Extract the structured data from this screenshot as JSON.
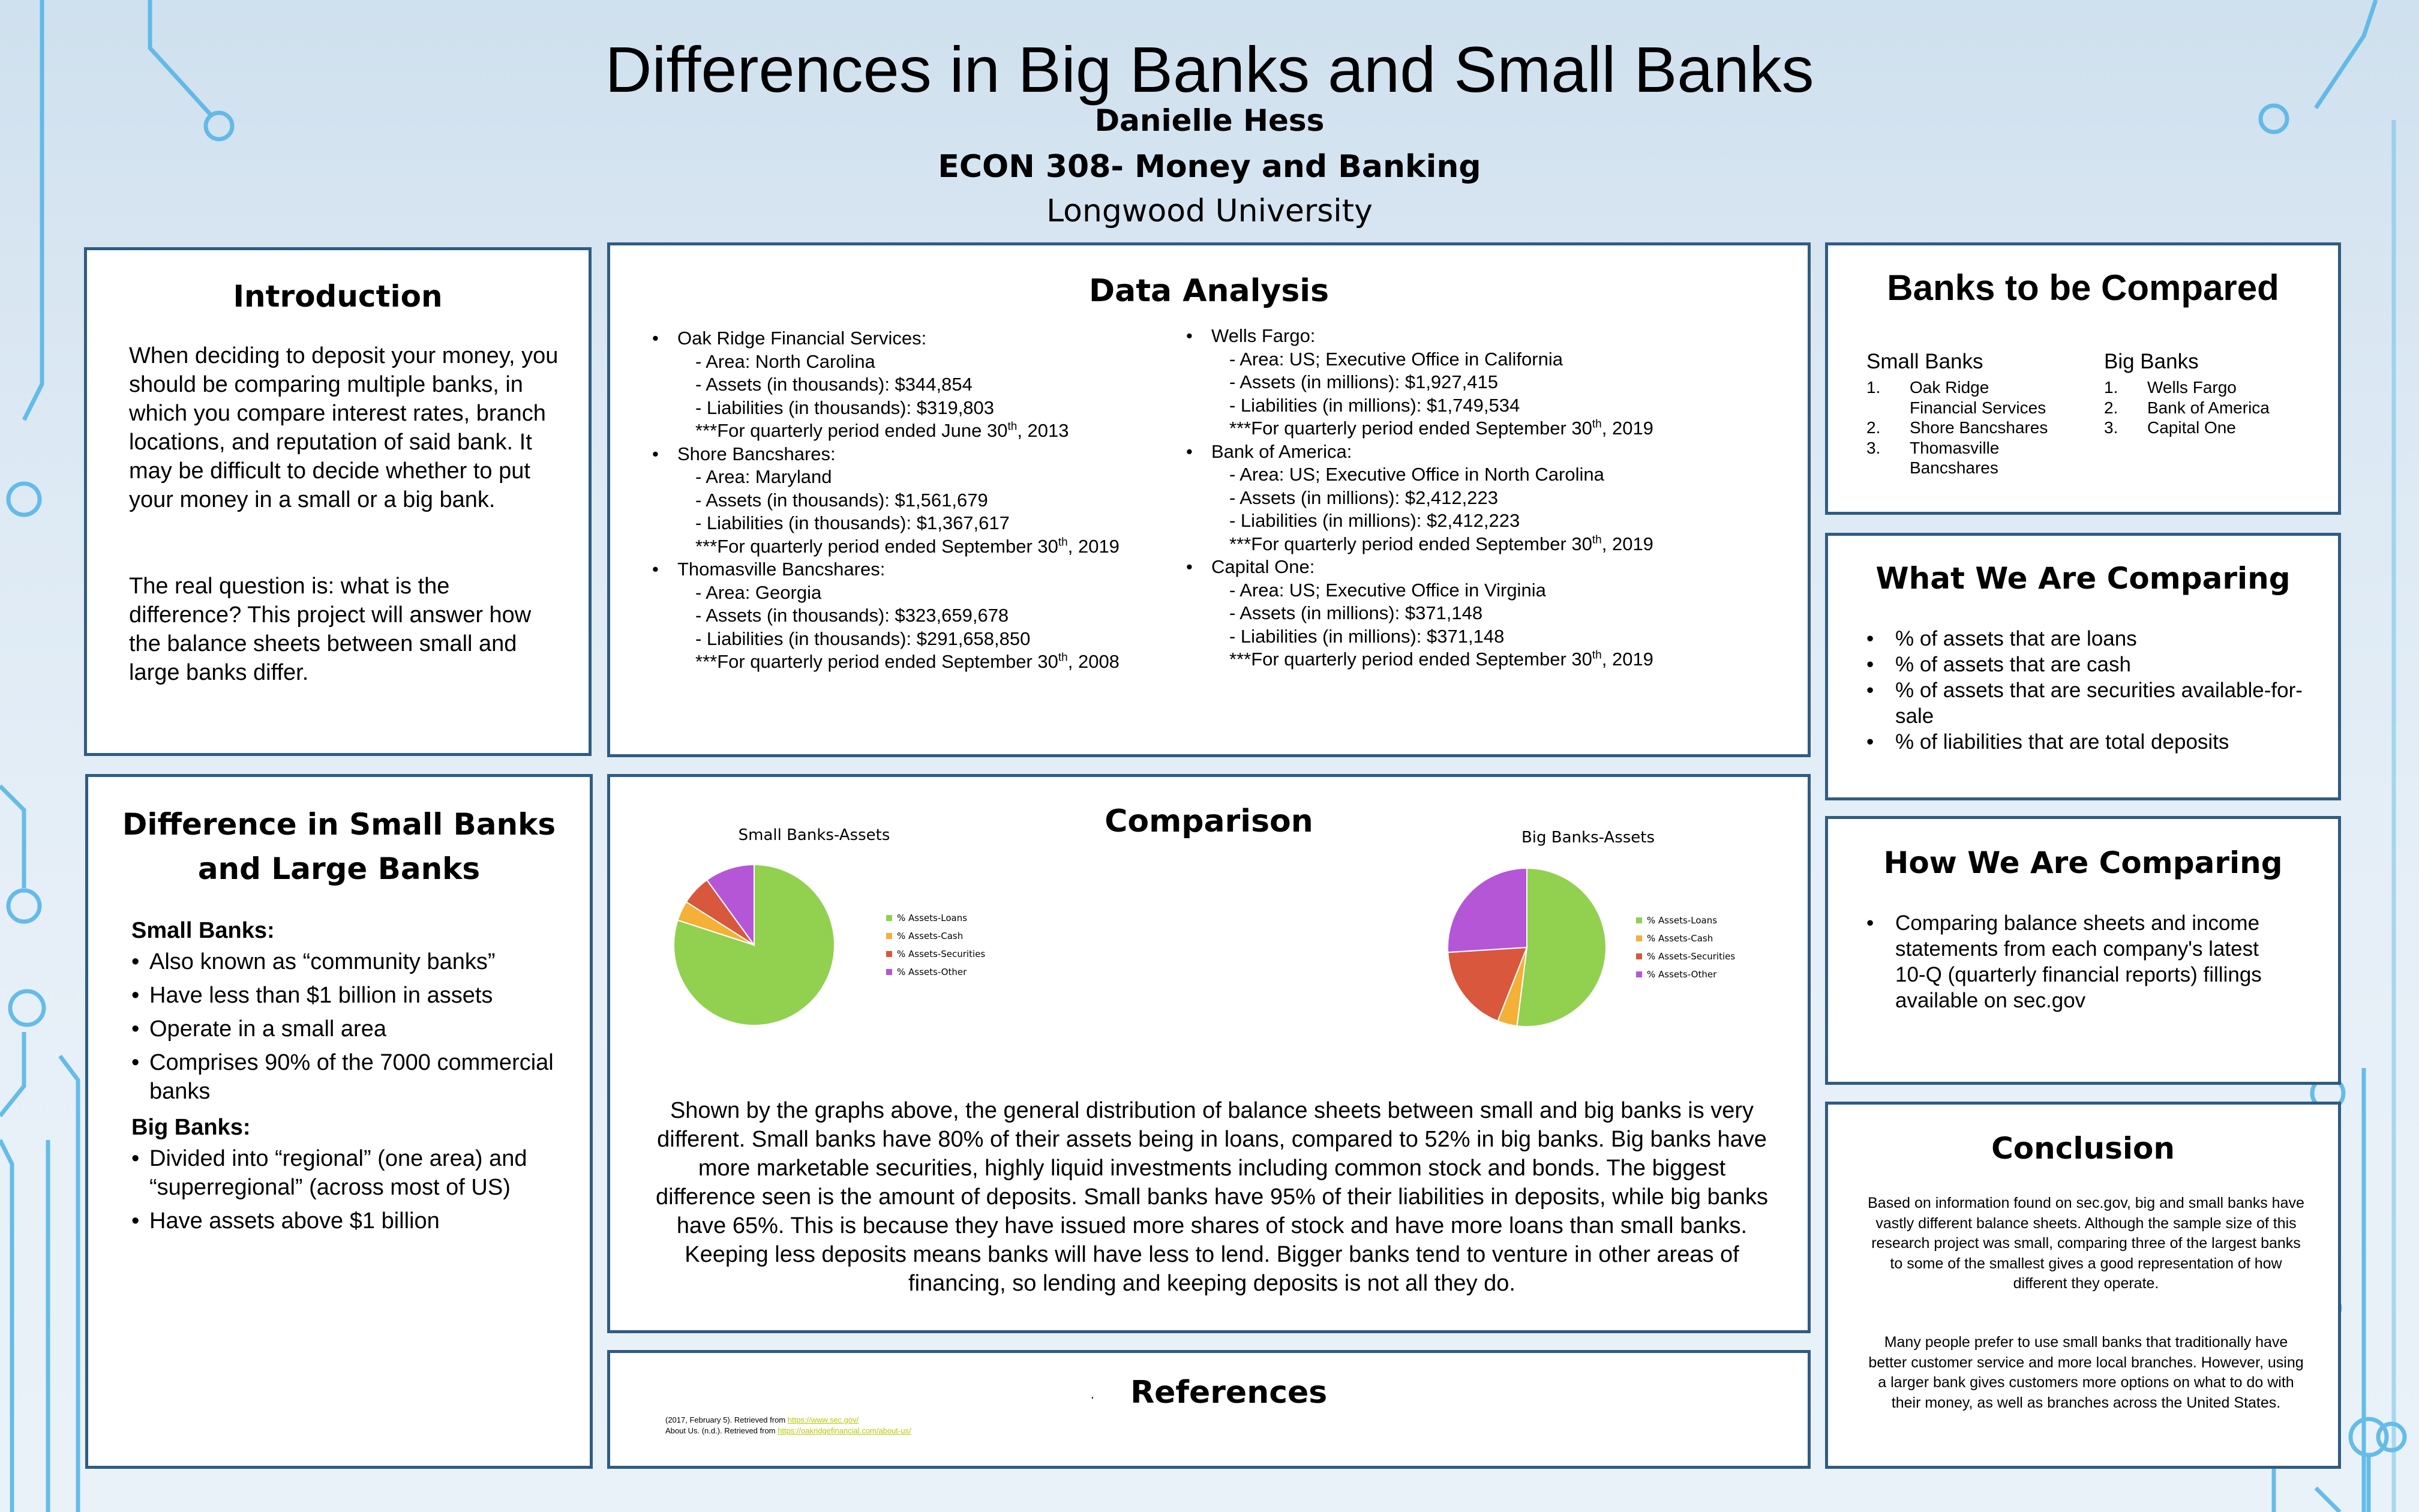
{
  "header": {
    "title": "Differences in Big Banks and Small Banks",
    "author": "Danielle Hess",
    "course": "ECON 308- Money and Banking",
    "university": "Longwood University"
  },
  "introduction": {
    "heading": "Introduction",
    "p1": "When deciding to deposit your money, you should be comparing multiple banks, in which you compare interest rates, branch locations, and reputation of said bank.  It may be difficult to decide whether to put your money in a small or a big bank.",
    "p2": "The real question is: what is the difference?  This project will answer how the balance sheets between small and large banks differ."
  },
  "data_analysis": {
    "heading": "Data Analysis",
    "small": [
      {
        "name": "Oak Ridge Financial Services:",
        "area": "- Area: North Carolina",
        "assets": "- Assets (in thousands): $344,854",
        "liabilities": "- Liabilities (in thousands): $319,803",
        "period_a": "***For quarterly period ended June 30",
        "sup": "th",
        "period_b": ", 2013"
      },
      {
        "name": "Shore Bancshares:",
        "area": "- Area: Maryland",
        "assets": "- Assets (in thousands): $1,561,679",
        "liabilities": "- Liabilities (in thousands): $1,367,617",
        "period_a": "***For quarterly period ended September 30",
        "sup": "th",
        "period_b": ", 2019"
      },
      {
        "name": "Thomasville Bancshares:",
        "area": "- Area: Georgia",
        "assets": "- Assets (in thousands): $323,659,678",
        "liabilities": "- Liabilities (in thousands): $291,658,850",
        "period_a": "***For quarterly period ended September 30",
        "sup": "th",
        "period_b": ", 2008"
      }
    ],
    "big": [
      {
        "name": "Wells Fargo:",
        "area": "- Area: US; Executive Office in California",
        "assets": "- Assets (in millions): $1,927,415",
        "liabilities": "- Liabilities (in millions): $1,749,534",
        "period_a": "***For quarterly period ended September 30",
        "sup": "th",
        "period_b": ", 2019"
      },
      {
        "name": "Bank of America:",
        "area": "- Area: US; Executive Office in North Carolina",
        "assets": "- Assets (in millions): $2,412,223",
        "liabilities": "- Liabilities (in millions): $2,412,223",
        "period_a": "***For quarterly period ended September 30",
        "sup": "th",
        "period_b": ", 2019"
      },
      {
        "name": "Capital One:",
        "area": "- Area: US; Executive Office in Virginia",
        "assets": "- Assets (in millions): $371,148",
        "liabilities": "- Liabilities (in millions): $371,148",
        "period_a": "***For quarterly period ended September 30",
        "sup": "th",
        "period_b": ", 2019"
      }
    ]
  },
  "banks_compared": {
    "heading": "Banks to be Compared",
    "small_caption": "Small Banks",
    "small_items": [
      {
        "num": "1.",
        "lines": [
          "Oak Ridge",
          "Financial Services"
        ]
      },
      {
        "num": "2.",
        "lines": [
          "Shore Bancshares"
        ]
      },
      {
        "num": "3.",
        "lines": [
          "Thomasville",
          "Bancshares"
        ]
      }
    ],
    "big_caption": "Big Banks",
    "big_items": [
      {
        "num": "1.",
        "lines": [
          "Wells Fargo"
        ]
      },
      {
        "num": "2.",
        "lines": [
          "Bank of America"
        ]
      },
      {
        "num": "3.",
        "lines": [
          "Capital One"
        ]
      }
    ]
  },
  "what_comparing": {
    "heading": "What We Are Comparing",
    "items": [
      "% of assets that are loans",
      "% of assets that are cash",
      "% of assets that are securities available-for-sale",
      "% of liabilities that are total deposits"
    ]
  },
  "how_comparing": {
    "heading": "How We Are Comparing",
    "items": [
      "Comparing balance sheets and income statements from each company's latest 10-Q (quarterly financial reports) fillings available on sec.gov"
    ]
  },
  "difference": {
    "heading": "Difference in Small Banks and Large Banks",
    "small_caption": "Small Banks:",
    "small_items": [
      "Also known as “community banks”",
      "Have less than $1 billion in assets",
      "Operate in a small area",
      "Comprises 90% of the 7000 commercial banks"
    ],
    "big_caption": "Big Banks:",
    "big_items": [
      "Divided into “regional” (one area) and “superregional” (across most of US)",
      "Have assets above $1 billion"
    ]
  },
  "comparison": {
    "heading": "Comparison",
    "text": "Shown by the graphs above, the general distribution of balance sheets between small and big banks is very different.  Small banks have 80% of their assets being in loans, compared to 52% in big banks.  Big banks have more marketable securities, highly liquid investments including common stock and bonds.  The biggest difference seen is the amount of deposits.  Small banks have 95% of their liabilities in deposits, while big banks have 65%.  This is because they have issued more shares of stock and have more loans than small banks.  Keeping less deposits means banks will have less to lend.  Bigger banks tend to venture in other areas of financing, so lending and keeping deposits is not all they do."
  },
  "chart_data": [
    {
      "type": "pie",
      "title": "Small Banks-Assets",
      "categories": [
        "% Assets-Loans",
        "% Assets-Cash",
        "% Assets-Securities",
        "% Assets-Other"
      ],
      "values": [
        80,
        4,
        6,
        10
      ],
      "colors": [
        "#92d050",
        "#f4b037",
        "#d9573c",
        "#b556d6"
      ],
      "legend": "right"
    },
    {
      "type": "pie",
      "title": "Big Banks-Assets",
      "categories": [
        "% Assets-Loans",
        "% Assets-Cash",
        "% Assets-Securities",
        "% Assets-Other"
      ],
      "values": [
        52,
        4,
        18,
        26
      ],
      "colors": [
        "#92d050",
        "#f4b037",
        "#d9573c",
        "#b556d6"
      ],
      "legend": "right"
    }
  ],
  "references": {
    "heading": "References",
    "marker": ".",
    "ref1_text": "(2017, February 5). Retrieved from ",
    "ref1_link": "https://www.sec.gov/",
    "ref2_text": "About Us. (n.d.). Retrieved from ",
    "ref2_link": "https://oakridgefinancial.com/about-us/"
  },
  "conclusion": {
    "heading": "Conclusion",
    "p1": "Based on information found on sec.gov, big and small banks have vastly different balance sheets.  Although the sample size of this research project was small, comparing three of the largest banks to some of the smallest gives a good representation of how different they operate.",
    "p2": "Many people prefer to use small banks that traditionally have better customer service and more local branches.  However, using a larger bank gives customers more options on what to do with their money, as well as branches across the United States."
  },
  "colors": {
    "panel_border": "#2f5c83",
    "circuit": "#3aa3dc",
    "loans": "#92d050",
    "cash": "#f4b037",
    "securities": "#d9573c",
    "other": "#b556d6"
  }
}
